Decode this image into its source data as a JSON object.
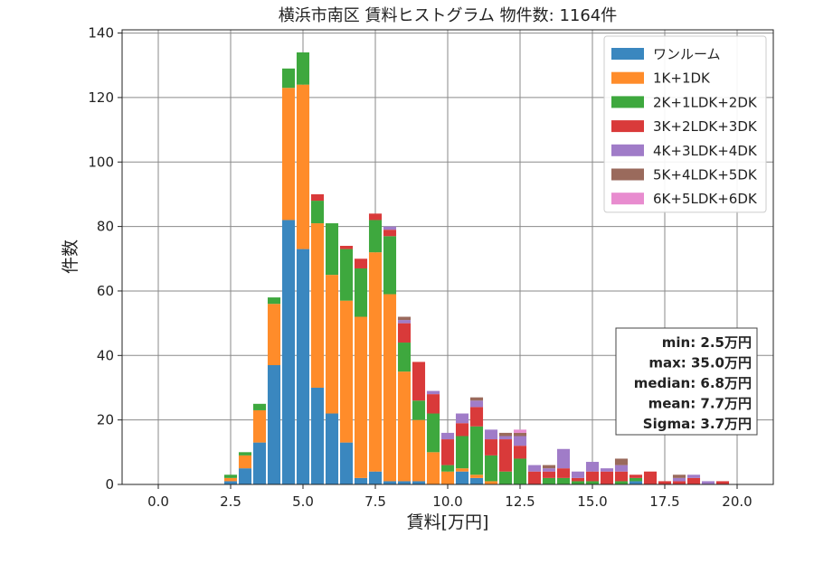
{
  "chart_data": {
    "type": "bar",
    "stacked": true,
    "title": "横浜市南区 賃料ヒストグラム  物件数: 1164件",
    "xlabel": "賃料[万円]",
    "ylabel": "件数",
    "xlim": [
      -1.25,
      21.25
    ],
    "ylim": [
      0,
      141
    ],
    "bin_width": 0.5,
    "grid": true,
    "legend_position": "top-right",
    "x_ticks": [
      0.0,
      2.5,
      5.0,
      7.5,
      10.0,
      12.5,
      15.0,
      17.5,
      20.0
    ],
    "x_tick_labels": [
      "0.0",
      "2.5",
      "5.0",
      "7.5",
      "10.0",
      "12.5",
      "15.0",
      "17.5",
      "20.0"
    ],
    "y_ticks": [
      0,
      20,
      40,
      60,
      80,
      100,
      120,
      140
    ],
    "y_tick_labels": [
      "0",
      "20",
      "40",
      "60",
      "80",
      "100",
      "120",
      "140"
    ],
    "bins": [
      2.5,
      3.0,
      3.5,
      4.0,
      4.5,
      5.0,
      5.5,
      6.0,
      6.5,
      7.0,
      7.5,
      8.0,
      8.5,
      9.0,
      9.5,
      10.0,
      10.5,
      11.0,
      11.5,
      12.0,
      12.5,
      13.0,
      13.5,
      14.0,
      14.5,
      15.0,
      15.5,
      16.0,
      16.5,
      17.0,
      17.5,
      18.0,
      18.5,
      19.0,
      19.5
    ],
    "series": [
      {
        "name": "ワンルーム",
        "color": "#3a87bf",
        "values": [
          1,
          5,
          13,
          37,
          82,
          73,
          30,
          22,
          13,
          2,
          4,
          1,
          1,
          1,
          0,
          0,
          4,
          2,
          0,
          0,
          0,
          0,
          0,
          0,
          0,
          0,
          0,
          0,
          1,
          0,
          0,
          0,
          0,
          0,
          0
        ]
      },
      {
        "name": "1K+1DK",
        "color": "#ff8c2a",
        "values": [
          1,
          4,
          10,
          19,
          41,
          51,
          51,
          43,
          44,
          50,
          68,
          58,
          34,
          19,
          10,
          4,
          1,
          1,
          1,
          0,
          0,
          0,
          0,
          0,
          0,
          0,
          0,
          0,
          0,
          0,
          0,
          0,
          0,
          0,
          0
        ]
      },
      {
        "name": "2K+1LDK+2DK",
        "color": "#3ea83e",
        "values": [
          1,
          1,
          2,
          2,
          6,
          10,
          7,
          16,
          16,
          15,
          10,
          18,
          9,
          6,
          12,
          2,
          10,
          15,
          8,
          4,
          8,
          0,
          2,
          2,
          1,
          1,
          0,
          1,
          1,
          0,
          0,
          0,
          0,
          0,
          0
        ]
      },
      {
        "name": "3K+2LDK+3DK",
        "color": "#d93a3a",
        "values": [
          0,
          0,
          0,
          0,
          0,
          0,
          2,
          0,
          1,
          3,
          2,
          2,
          6,
          12,
          6,
          8,
          4,
          6,
          5,
          10,
          4,
          4,
          2,
          3,
          1,
          3,
          4,
          3,
          1,
          4,
          1,
          1,
          2,
          0,
          1
        ]
      },
      {
        "name": "4K+3LDK+4DK",
        "color": "#a07cc8",
        "values": [
          0,
          0,
          0,
          0,
          0,
          0,
          0,
          0,
          0,
          0,
          0,
          1,
          1,
          0,
          1,
          2,
          3,
          2,
          3,
          1,
          3,
          2,
          1,
          6,
          2,
          3,
          1,
          2,
          0,
          0,
          0,
          1,
          1,
          1,
          0
        ]
      },
      {
        "name": "5K+4LDK+5DK",
        "color": "#9a6a5c",
        "values": [
          0,
          0,
          0,
          0,
          0,
          0,
          0,
          0,
          0,
          0,
          0,
          0,
          1,
          0,
          0,
          0,
          0,
          1,
          0,
          1,
          1,
          0,
          1,
          0,
          0,
          0,
          0,
          2,
          0,
          0,
          0,
          1,
          0,
          0,
          0
        ]
      },
      {
        "name": "6K+5LDK+6DK",
        "color": "#e88ccf",
        "values": [
          0,
          0,
          0,
          0,
          0,
          0,
          0,
          0,
          0,
          0,
          0,
          0,
          0,
          0,
          0,
          0,
          0,
          0,
          0,
          0,
          1,
          0,
          0,
          0,
          0,
          0,
          0,
          0,
          0,
          0,
          0,
          0,
          0,
          0,
          0
        ]
      }
    ],
    "stats": [
      "min: 2.5万円",
      "max: 35.0万円",
      "median: 6.8万円",
      "mean: 7.7万円",
      "Sigma: 3.7万円"
    ]
  }
}
